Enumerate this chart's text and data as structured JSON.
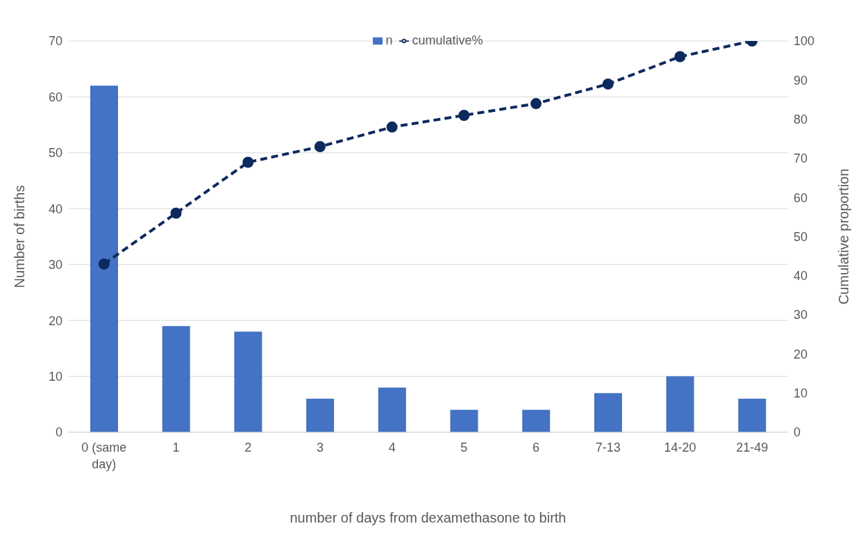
{
  "chart_data": {
    "type": "bar",
    "xlabel": "number of days from dexamethasone to birth",
    "ylabel": "Number of births",
    "y2label": "Cumulative proportion",
    "categories": [
      "0 (same day)",
      "1",
      "2",
      "3",
      "4",
      "5",
      "6",
      "7-13",
      "14-20",
      "21-49"
    ],
    "series": [
      {
        "name": "n",
        "color": "#4472c4",
        "values": [
          62,
          19,
          18,
          6,
          8,
          4,
          4,
          7,
          10,
          6
        ]
      },
      {
        "name": "cumulative%",
        "type": "line",
        "axis": "y2",
        "color": "#0d2a5e",
        "marker": "circle",
        "line_style": "dashed",
        "values": [
          43,
          56,
          69,
          73,
          78,
          81,
          84,
          89,
          96,
          100
        ]
      }
    ],
    "ylim": [
      0,
      70
    ],
    "yticks": [
      0,
      10,
      20,
      30,
      40,
      50,
      60,
      70
    ],
    "y2lim": [
      0,
      100
    ],
    "y2ticks": [
      0,
      10,
      20,
      30,
      40,
      50,
      60,
      70,
      80,
      90,
      100
    ],
    "grid": "y",
    "legend": "top"
  }
}
